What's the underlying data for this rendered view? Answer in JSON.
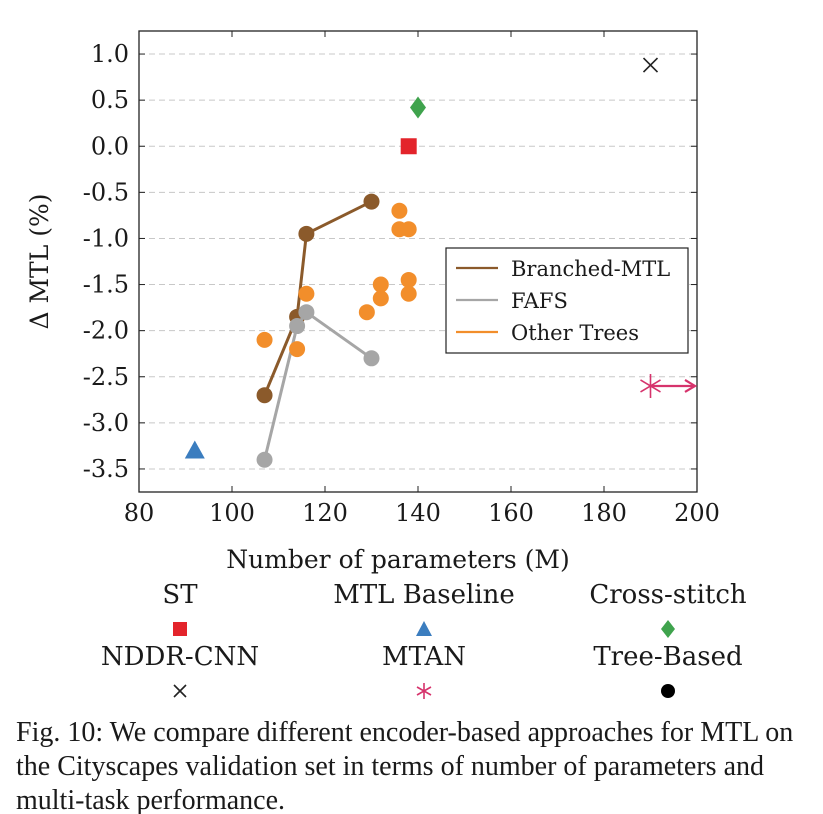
{
  "chart_data": {
    "type": "scatter",
    "title": "",
    "xlabel": "Number of parameters (M)",
    "ylabel": "Δ MTL (%)",
    "xlim": [
      80,
      200
    ],
    "ylim": [
      -3.75,
      1.25
    ],
    "x_ticks": [
      80,
      100,
      120,
      140,
      160,
      180,
      200
    ],
    "x_tick_labels": [
      "80",
      "100",
      "120",
      "140",
      "160",
      "180",
      "200"
    ],
    "y_ticks": [
      1.0,
      0.5,
      0.0,
      -0.5,
      -1.0,
      -1.5,
      -2.0,
      -2.5,
      -3.0,
      -3.5
    ],
    "y_tick_labels": [
      "1.0",
      "0.5",
      "0.0",
      "-0.5",
      "-1.0",
      "-1.5",
      "-2.0",
      "-2.5",
      "-3.0",
      "-3.5"
    ],
    "grid": "horizontal dashed",
    "series": [
      {
        "name": "Branched-MTL",
        "type": "line",
        "color": "#8b5a2b",
        "marker": "circle",
        "x": [
          107,
          114,
          116,
          130
        ],
        "y": [
          -2.7,
          -1.85,
          -0.95,
          -0.6
        ]
      },
      {
        "name": "FAFS",
        "type": "line",
        "color": "#a6a6a6",
        "marker": "circle",
        "x": [
          107,
          114,
          116,
          130
        ],
        "y": [
          -3.4,
          -1.95,
          -1.8,
          -2.3
        ]
      },
      {
        "name": "Other Trees",
        "type": "scatter",
        "color": "#f28e2b",
        "marker": "circle",
        "x": [
          107,
          114,
          116,
          129,
          132,
          132,
          136,
          136,
          138,
          138,
          138
        ],
        "y": [
          -2.1,
          -2.2,
          -1.6,
          -1.8,
          -1.5,
          -1.65,
          -0.7,
          -0.9,
          -0.9,
          -1.45,
          -1.6
        ]
      },
      {
        "name": "ST",
        "type": "point",
        "color": "#e3242b",
        "marker": "square",
        "x": [
          138
        ],
        "y": [
          0.0
        ]
      },
      {
        "name": "MTL Baseline",
        "type": "point",
        "color": "#3b7dbf",
        "marker": "triangle",
        "x": [
          92
        ],
        "y": [
          -3.3
        ]
      },
      {
        "name": "Cross-stitch",
        "type": "point",
        "color": "#3fa34d",
        "marker": "diamond",
        "x": [
          140
        ],
        "y": [
          0.42
        ]
      },
      {
        "name": "NDDR-CNN",
        "type": "point",
        "color": "#222222",
        "marker": "cross",
        "x": [
          190
        ],
        "y": [
          0.88
        ]
      },
      {
        "name": "MTAN",
        "type": "point",
        "color": "#d6336c",
        "marker": "asterisk",
        "x": [
          190
        ],
        "y": [
          -2.6
        ],
        "arrow_to_x": 200
      }
    ],
    "inline_legend": {
      "position": "center-right",
      "entries": [
        {
          "label": "Branched-MTL",
          "color": "#8b5a2b"
        },
        {
          "label": "FAFS",
          "color": "#a6a6a6"
        },
        {
          "label": "Other Trees",
          "color": "#f28e2b"
        }
      ]
    }
  },
  "legend": {
    "items": [
      {
        "label": "ST",
        "marker": "square",
        "color": "#e3242b"
      },
      {
        "label": "MTL Baseline",
        "marker": "triangle",
        "color": "#3b7dbf"
      },
      {
        "label": "Cross-stitch",
        "marker": "diamond",
        "color": "#3fa34d"
      },
      {
        "label": "NDDR-CNN",
        "marker": "cross",
        "color": "#222222"
      },
      {
        "label": "MTAN",
        "marker": "asterisk",
        "color": "#d6336c"
      },
      {
        "label": "Tree-Based",
        "marker": "circle",
        "color": "#000000"
      }
    ]
  },
  "caption": "Fig. 10: We compare different encoder-based approaches for MTL on the Cityscapes validation set in terms of number of parameters and multi-task performance."
}
